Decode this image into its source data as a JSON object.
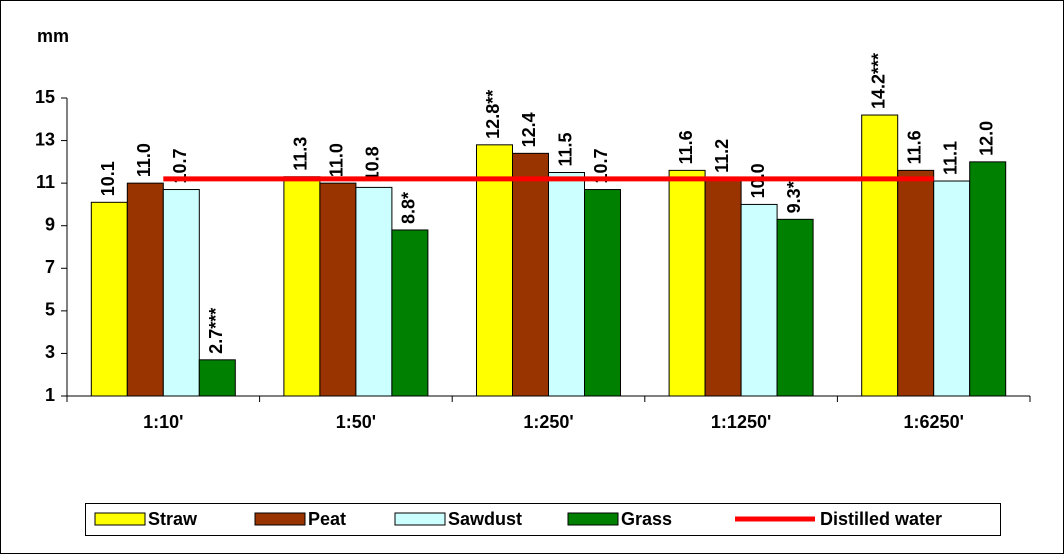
{
  "chart_data": {
    "type": "bar",
    "y_axis_label": "mm",
    "categories": [
      "1:10'",
      "1:50'",
      "1:250'",
      "1:1250'",
      "1:6250'"
    ],
    "series": [
      {
        "name": "Straw",
        "type": "bar",
        "color": "#ffff00",
        "values": [
          10.1,
          11.3,
          12.8,
          11.6,
          14.2
        ],
        "value_labels": [
          "10.1",
          "11.3",
          "12.8**",
          "11.6",
          "14.2***"
        ]
      },
      {
        "name": "Peat",
        "type": "bar",
        "color": "#993300",
        "values": [
          11.0,
          11.0,
          12.4,
          11.2,
          11.6
        ],
        "value_labels": [
          "11.0",
          "11.0",
          "12.4",
          "11.2",
          "11.6"
        ]
      },
      {
        "name": "Sawdust",
        "type": "bar",
        "color": "#ccffff",
        "values": [
          10.7,
          10.8,
          11.5,
          10.0,
          11.1
        ],
        "value_labels": [
          "10.7",
          "10.8",
          "11.5",
          "10.0",
          "11.1"
        ]
      },
      {
        "name": "Grass",
        "type": "bar",
        "color": "#008000",
        "values": [
          2.7,
          8.8,
          10.7,
          9.3,
          12.0
        ],
        "value_labels": [
          "2.7***",
          "8.8*",
          "10.7",
          "9.3*",
          "12.0"
        ]
      },
      {
        "name": "Distilled water",
        "type": "line",
        "color": "#ff0000",
        "values": [
          11.2,
          11.2,
          11.2,
          11.2,
          11.2
        ]
      }
    ],
    "ylim": [
      1,
      15
    ],
    "yticks": [
      1,
      3,
      5,
      7,
      9,
      11,
      13,
      15
    ],
    "grid": false,
    "legend": "bottom"
  }
}
